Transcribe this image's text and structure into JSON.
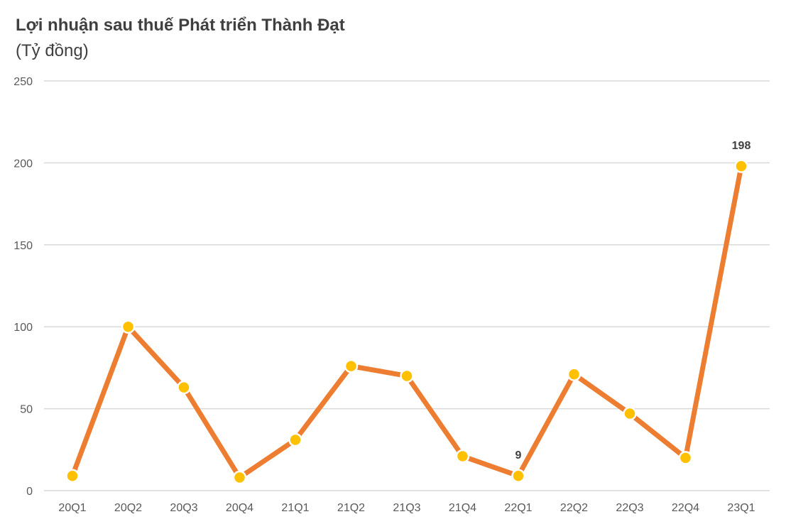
{
  "chart_data": {
    "type": "line",
    "title": "Lợi nhuận sau thuế Phát triển Thành Đạt",
    "subtitle": "(Tỷ đồng)",
    "categories": [
      "20Q1",
      "20Q2",
      "20Q3",
      "20Q4",
      "21Q1",
      "21Q2",
      "21Q3",
      "21Q4",
      "22Q1",
      "22Q2",
      "22Q3",
      "22Q4",
      "23Q1"
    ],
    "series": [
      {
        "values": [
          9,
          100,
          63,
          8,
          31,
          76,
          70,
          21,
          9,
          71,
          47,
          20,
          198
        ]
      }
    ],
    "ylim": [
      0,
      250
    ],
    "yticks": [
      "0",
      "50",
      "100",
      "150",
      "200",
      "250"
    ],
    "data_labels": [
      {
        "index": 8,
        "text": "9"
      },
      {
        "index": 12,
        "text": "198"
      }
    ],
    "grid": true,
    "line_color": "#ED7D31",
    "marker_color": "#FFC000",
    "grid_color": "#D9D9D9"
  }
}
